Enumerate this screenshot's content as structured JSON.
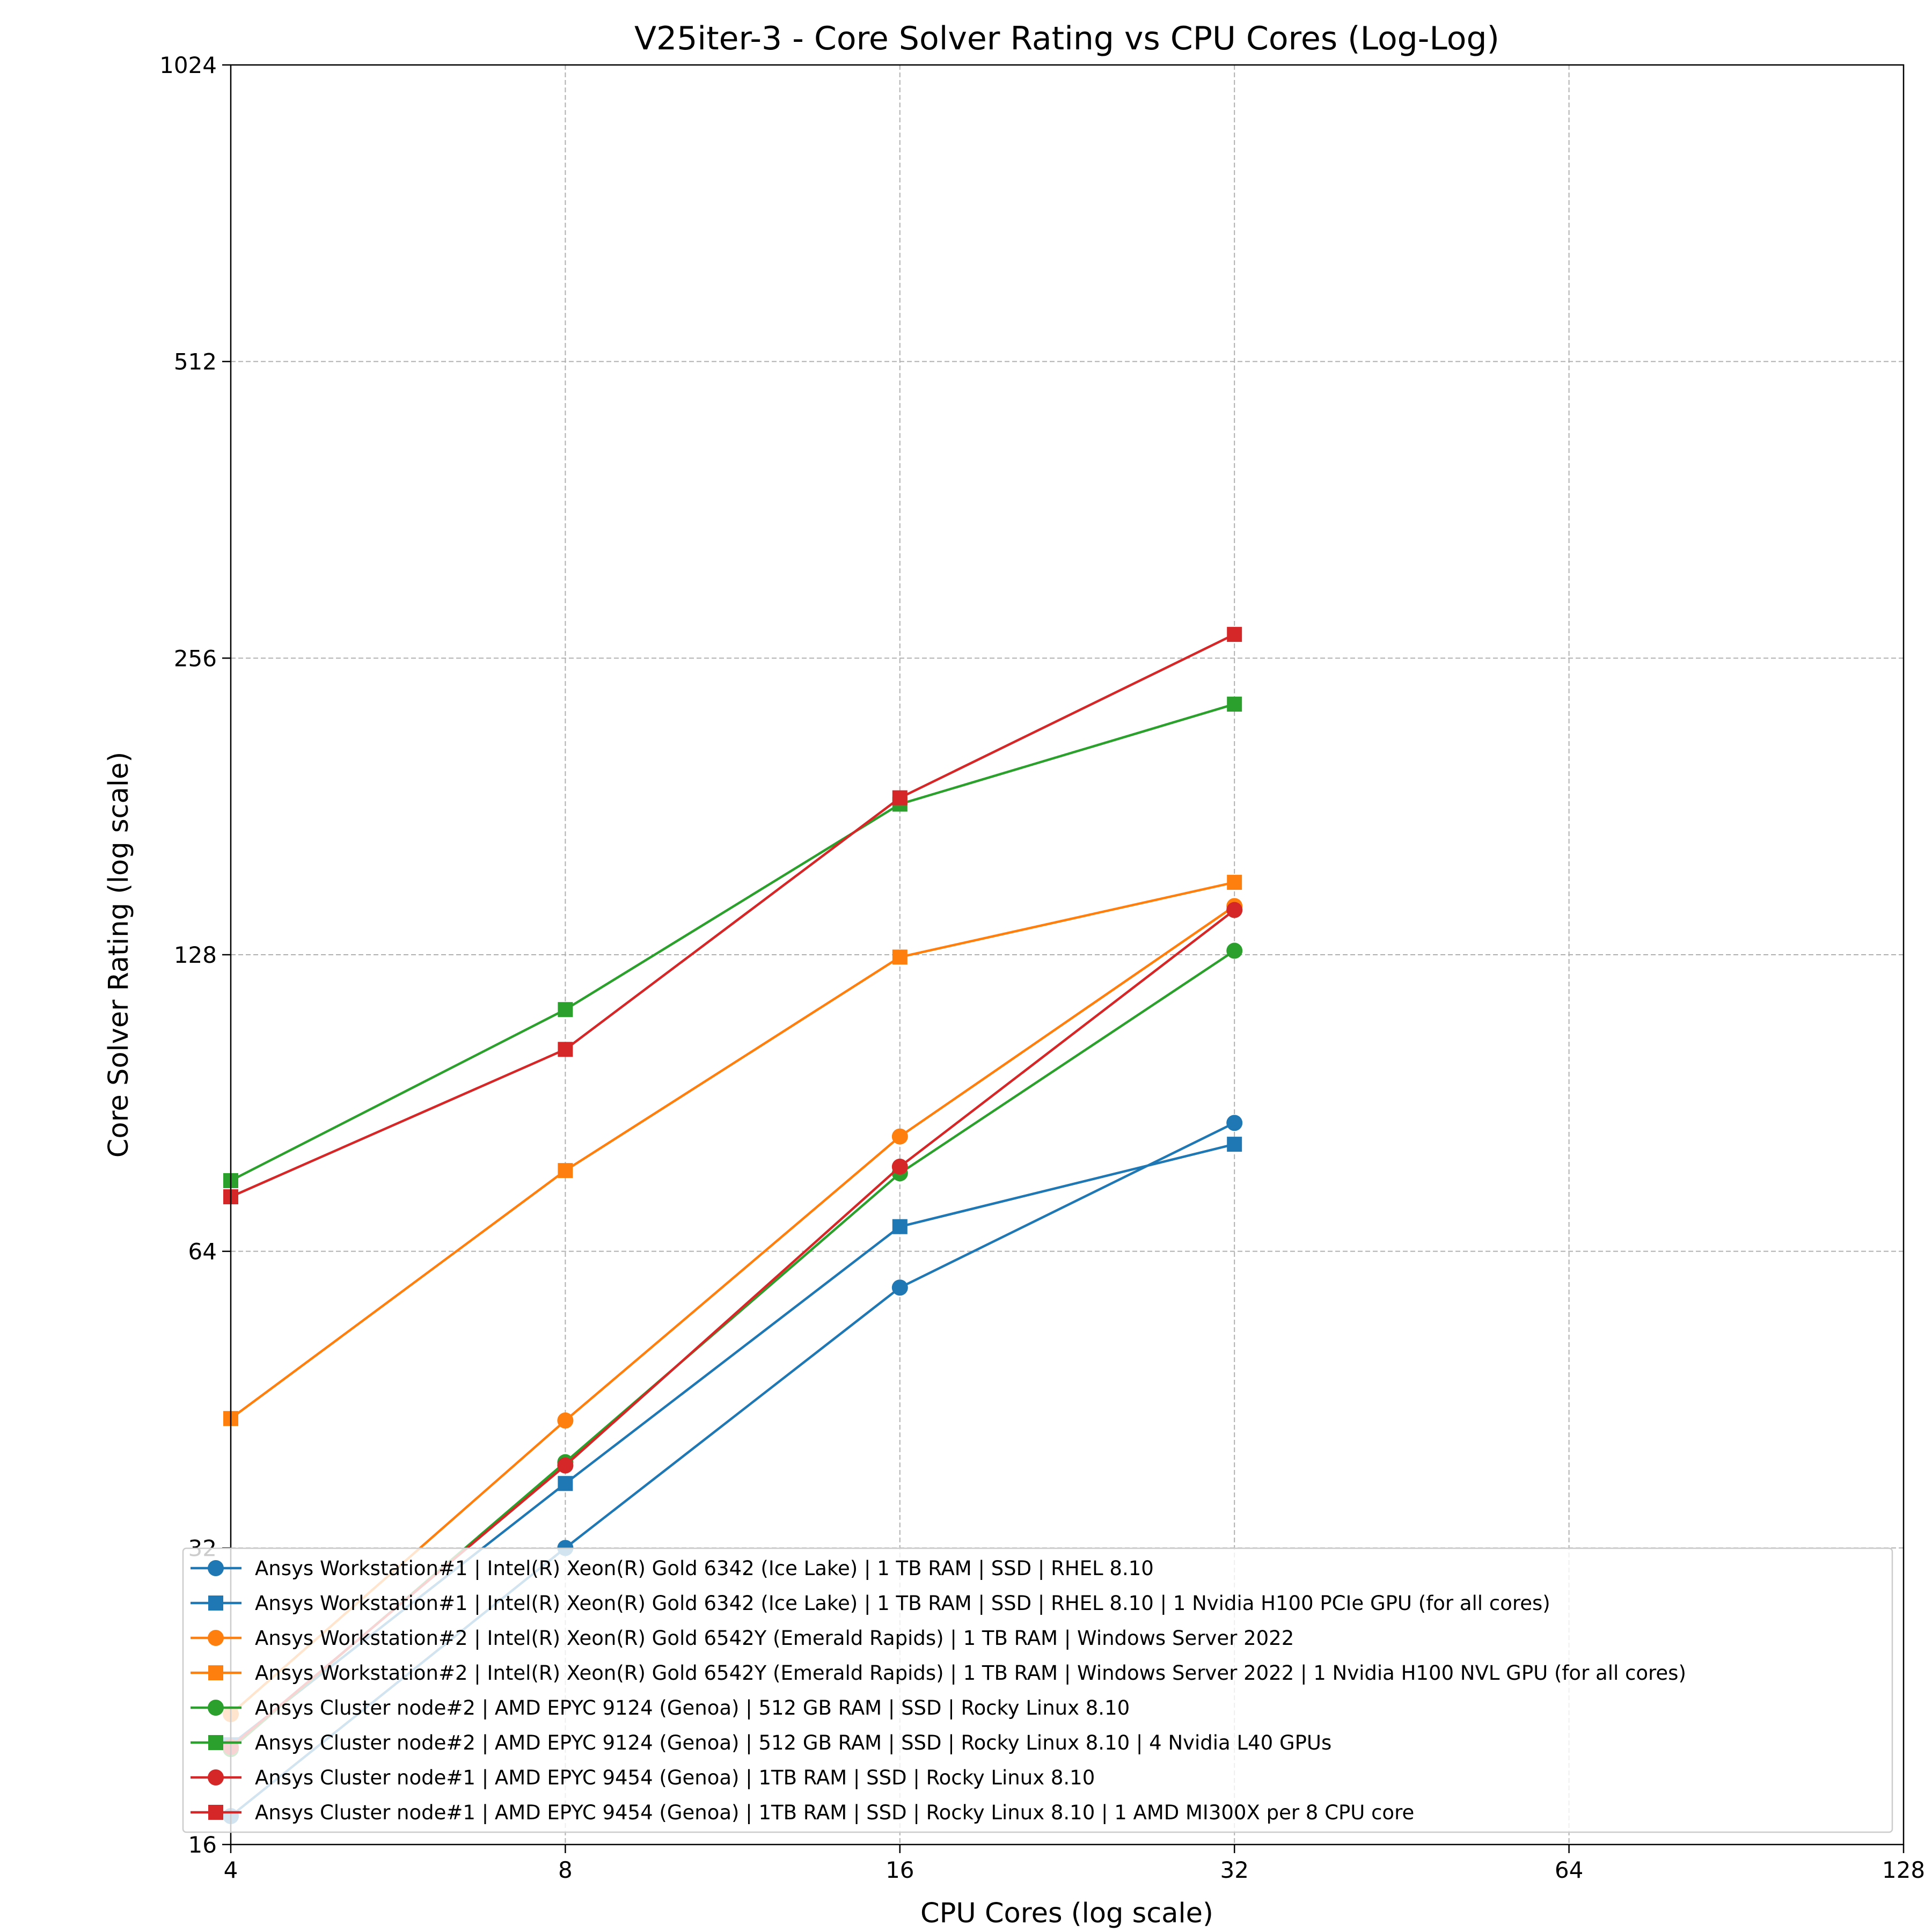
{
  "chart_data": {
    "type": "line",
    "title": "V25iter-3 - Core Solver Rating vs CPU Cores (Log-Log)",
    "xlabel": "CPU Cores (log scale)",
    "ylabel": "Core Solver Rating (log scale)",
    "xscale": "log2",
    "yscale": "log2",
    "xlim": [
      4,
      128
    ],
    "ylim": [
      16,
      1024
    ],
    "xticks": [
      "4",
      "8",
      "16",
      "32",
      "64",
      "128"
    ],
    "yticks": [
      "16",
      "32",
      "64",
      "128",
      "256",
      "512",
      "1024"
    ],
    "grid": true,
    "legend_position": "bottom",
    "x": [
      4,
      8,
      16,
      32
    ],
    "series": [
      {
        "name": "Ansys Workstation#1 | Intel(R) Xeon(R) Gold 6342 (Ice Lake) | 1 TB RAM | SSD | RHEL 8.10",
        "color": "#1f77b4",
        "marker": "circle",
        "values": [
          17.1,
          32.0,
          58.8,
          86.4
        ]
      },
      {
        "name": "Ansys Workstation#1 | Intel(R) Xeon(R) Gold 6342 (Ice Lake) | 1 TB RAM | SSD | RHEL 8.10 | 1 Nvidia H100 PCIe GPU (for all cores)",
        "color": "#1f77b4",
        "marker": "square",
        "values": [
          20.2,
          37.2,
          67.8,
          82.2
        ]
      },
      {
        "name": "Ansys Workstation#2 | Intel(R) Xeon(R) Gold 6542Y (Emerald Rapids) | 1 TB RAM | Windows Server 2022",
        "color": "#ff7f0e",
        "marker": "circle",
        "values": [
          21.7,
          43.1,
          83.7,
          143.4
        ]
      },
      {
        "name": "Ansys Workstation#2 | Intel(R) Xeon(R) Gold 6542Y (Emerald Rapids) | 1 TB RAM | Windows Server 2022 | 1 Nvidia H100 NVL GPU (for all cores)",
        "color": "#ff7f0e",
        "marker": "square",
        "values": [
          43.3,
          77.3,
          127.3,
          151.6
        ]
      },
      {
        "name": "Ansys Cluster node#2 | AMD EPYC 9124 (Genoa) | 512 GB RAM | SSD | Rocky Linux 8.10",
        "color": "#2ca02c",
        "marker": "circle",
        "values": [
          20.0,
          39.1,
          76.8,
          129.2
        ]
      },
      {
        "name": "Ansys Cluster node#2 | AMD EPYC 9124 (Genoa) | 512 GB RAM | SSD | Rocky Linux 8.10 | 4 Nvidia L40 GPUs",
        "color": "#2ca02c",
        "marker": "square",
        "values": [
          75.5,
          112.6,
          182.0,
          229.9
        ]
      },
      {
        "name": "Ansys Cluster node#1 | AMD EPYC 9454 (Genoa) | 1TB  RAM | SSD | Rocky Linux 8.10",
        "color": "#d62728",
        "marker": "circle",
        "values": [
          20.1,
          38.8,
          78.0,
          142.1
        ]
      },
      {
        "name": "Ansys Cluster node#1 | AMD EPYC 9454 (Genoa) | 1TB  RAM | SSD | Rocky Linux 8.10 | 1 AMD MI300X per 8 CPU core",
        "color": "#d62728",
        "marker": "square",
        "values": [
          72.7,
          102.6,
          184.7,
          270.6
        ]
      }
    ]
  }
}
